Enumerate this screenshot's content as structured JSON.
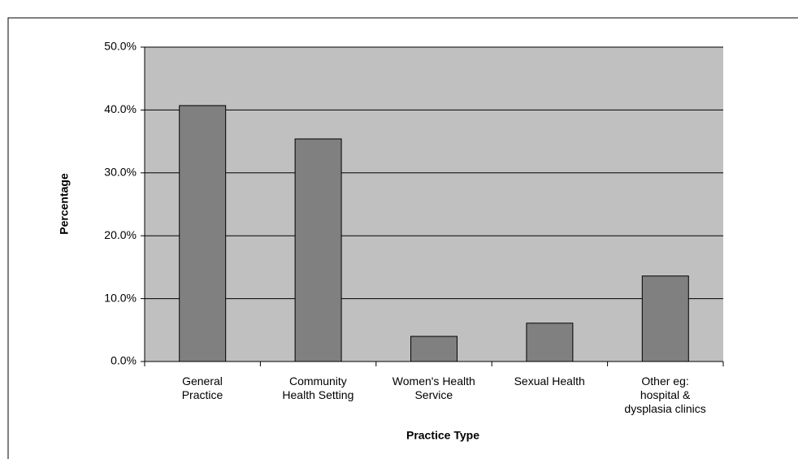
{
  "chart_data": {
    "type": "bar",
    "x_label": "Practice Type",
    "y_label": "Percentage",
    "categories": [
      "General\nPractice",
      "Community\nHealth Setting",
      "Women's Health\nService",
      "Sexual Health",
      "Other eg:\nhospital &\ndysplasia clinics"
    ],
    "values": [
      40.7,
      35.4,
      4.0,
      6.1,
      13.6
    ],
    "color": "#808080",
    "plot_background": "#c0c0c0",
    "ylim": [
      0,
      50
    ],
    "yticks": [
      {
        "value": 0,
        "label": "0.0%"
      },
      {
        "value": 10,
        "label": "10.0%"
      },
      {
        "value": 20,
        "label": "20.0%"
      },
      {
        "value": 30,
        "label": "30.0%"
      },
      {
        "value": 40,
        "label": "40.0%"
      },
      {
        "value": 50,
        "label": "50.0%"
      }
    ],
    "grid": true
  }
}
